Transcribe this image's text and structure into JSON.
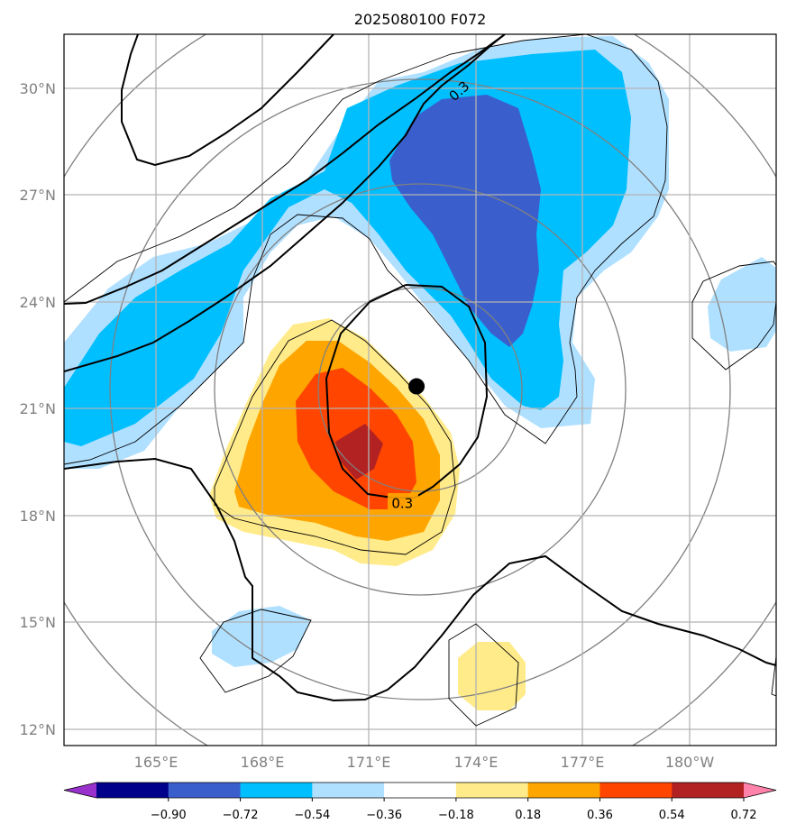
{
  "chart_data": {
    "type": "contour-map",
    "title": "2025080100 F072",
    "x_ticks": [
      "165°E",
      "168°E",
      "171°E",
      "174°E",
      "177°E",
      "180°W"
    ],
    "y_ticks": [
      "12°N",
      "15°N",
      "18°N",
      "21°N",
      "24°N",
      "27°N",
      "30°N"
    ],
    "lon_range": [
      162.5,
      182.5
    ],
    "lat_range": [
      11.5,
      31.5
    ],
    "contour_labels": [
      {
        "text": "0.3",
        "lon": 173.6,
        "lat": 29.9,
        "angle": -42
      },
      {
        "text": "0.3",
        "lon": 172.0,
        "lat": 18.3,
        "angle": 0
      }
    ],
    "center_marker": {
      "lon": 172.4,
      "lat": 21.6
    },
    "colorbar": {
      "levels": [
        "−0.90",
        "−0.72",
        "−0.54",
        "−0.36",
        "−0.18",
        "0.18",
        "0.36",
        "0.54",
        "0.72",
        "0.90"
      ],
      "colors": [
        "#9932cc",
        "#00008b",
        "#3a5fcd",
        "#00bfff",
        "#b0e0ff",
        "#ffffff",
        "#ffeb8a",
        "#ffa500",
        "#ff4500",
        "#b22222",
        "#ff82ab"
      ],
      "extend": "both"
    },
    "grid": true
  }
}
